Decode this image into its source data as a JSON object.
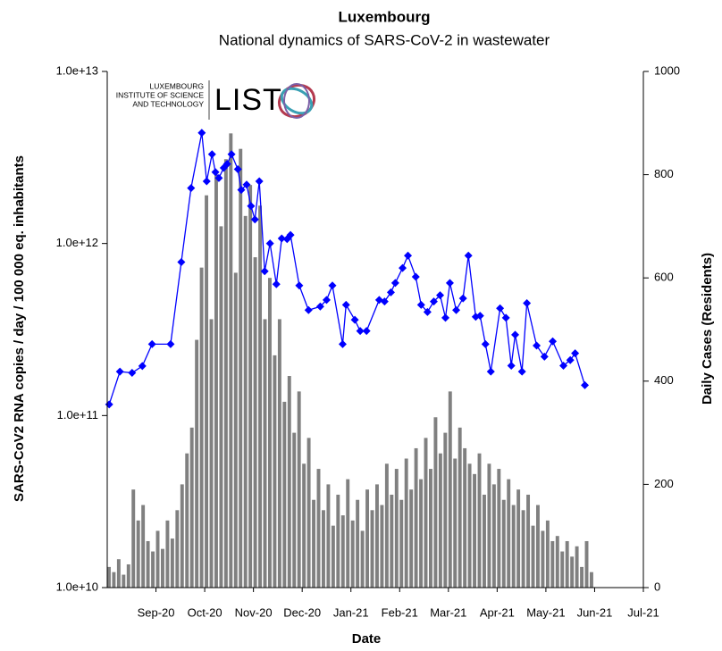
{
  "chart_data": {
    "type": "combo",
    "title": "Luxembourg",
    "subtitle": "National dynamics of SARS-CoV-2 in wastewater",
    "x_label": "Date",
    "y_label": "SARS-CoV2 RNA copies / day  / 100 000 eq. inhabitants",
    "y2_label": "Daily Cases (Residents)",
    "logo": {
      "institute": [
        "LUXEMBOURG",
        "INSTITUTE OF SCIENCE",
        "AND TECHNOLOGY"
      ],
      "brand": "LIST"
    },
    "xlim": [
      0,
      11
    ],
    "xticks": [
      {
        "value": 1,
        "label": "Sep-20"
      },
      {
        "value": 2,
        "label": "Oct-20"
      },
      {
        "value": 3,
        "label": "Nov-20"
      },
      {
        "value": 4,
        "label": "Dec-20"
      },
      {
        "value": 5,
        "label": "Jan-21"
      },
      {
        "value": 6,
        "label": "Feb-21"
      },
      {
        "value": 7,
        "label": "Mar-21"
      },
      {
        "value": 8,
        "label": "Apr-21"
      },
      {
        "value": 9,
        "label": "May-21"
      },
      {
        "value": 10,
        "label": "Jun-21"
      },
      {
        "value": 11,
        "label": "Jul-21"
      }
    ],
    "ylog": true,
    "ylim": [
      10000000000,
      10000000000000
    ],
    "yticks": [
      {
        "value": 10000000000,
        "label": "1.0e+10"
      },
      {
        "value": 100000000000,
        "label": "1.0e+11"
      },
      {
        "value": 1000000000000,
        "label": "1.0e+12"
      },
      {
        "value": 10000000000000,
        "label": "1.0e+13"
      }
    ],
    "y2lim": [
      0,
      1000
    ],
    "y2ticks": [
      0,
      200,
      400,
      600,
      800,
      1000
    ],
    "series": [
      {
        "name": "Daily Cases (Residents)",
        "type": "bar",
        "axis": "y2",
        "color": "#808080",
        "x": [
          0,
          0.1,
          0.2,
          0.3,
          0.4,
          0.5,
          0.6,
          0.7,
          0.8,
          0.9,
          1,
          1.1,
          1.2,
          1.3,
          1.4,
          1.5,
          1.6,
          1.7,
          1.8,
          1.9,
          2,
          2.1,
          2.2,
          2.3,
          2.4,
          2.5,
          2.6,
          2.7,
          2.8,
          2.9,
          3,
          3.1,
          3.2,
          3.3,
          3.4,
          3.5,
          3.6,
          3.7,
          3.8,
          3.9,
          4,
          4.1,
          4.2,
          4.3,
          4.4,
          4.5,
          4.6,
          4.7,
          4.8,
          4.9,
          5,
          5.1,
          5.2,
          5.3,
          5.4,
          5.5,
          5.6,
          5.7,
          5.8,
          5.9,
          6,
          6.1,
          6.2,
          6.3,
          6.4,
          6.5,
          6.6,
          6.7,
          6.8,
          6.9,
          7,
          7.1,
          7.2,
          7.3,
          7.4,
          7.5,
          7.6,
          7.7,
          7.8,
          7.9,
          8,
          8.1,
          8.2,
          8.3,
          8.4,
          8.5,
          8.6,
          8.7,
          8.8,
          8.9,
          9,
          9.1,
          9.2,
          9.3,
          9.4,
          9.5,
          9.6,
          9.7,
          9.8,
          9.9
        ],
        "values": [
          40,
          30,
          55,
          25,
          45,
          190,
          130,
          160,
          90,
          70,
          110,
          75,
          130,
          95,
          150,
          200,
          260,
          310,
          480,
          620,
          760,
          520,
          800,
          700,
          830,
          880,
          610,
          850,
          720,
          780,
          640,
          740,
          520,
          600,
          450,
          520,
          360,
          410,
          300,
          380,
          240,
          290,
          170,
          230,
          150,
          200,
          120,
          180,
          140,
          210,
          130,
          170,
          110,
          190,
          150,
          200,
          160,
          240,
          180,
          230,
          170,
          250,
          190,
          270,
          210,
          290,
          230,
          330,
          260,
          300,
          380,
          250,
          310,
          270,
          240,
          220,
          260,
          180,
          240,
          200,
          230,
          170,
          210,
          160,
          190,
          150,
          180,
          120,
          160,
          110,
          130,
          90,
          100,
          70,
          90,
          60,
          80,
          40,
          90,
          30
        ]
      },
      {
        "name": "SARS-CoV2 RNA copies / day / 100 000 eq. inhabitants",
        "type": "line",
        "axis": "y",
        "color": "#0000ff",
        "x": [
          0.04,
          0.26,
          0.51,
          0.72,
          0.92,
          1.3,
          1.52,
          1.72,
          1.94,
          2.04,
          2.15,
          2.22,
          2.29,
          2.39,
          2.46,
          2.55,
          2.68,
          2.75,
          2.86,
          2.95,
          3.03,
          3.12,
          3.23,
          3.34,
          3.47,
          3.58,
          3.69,
          3.76,
          3.94,
          4.13,
          4.37,
          4.5,
          4.62,
          4.83,
          4.9,
          5.08,
          5.19,
          5.32,
          5.58,
          5.69,
          5.82,
          5.91,
          6.06,
          6.17,
          6.33,
          6.44,
          6.57,
          6.7,
          6.83,
          6.94,
          7.03,
          7.16,
          7.3,
          7.41,
          7.56,
          7.65,
          7.76,
          7.87,
          8.06,
          8.18,
          8.29,
          8.37,
          8.51,
          8.61,
          8.81,
          8.97,
          9.14,
          9.36,
          9.5,
          9.6,
          9.8
        ],
        "values": [
          116000000000,
          180000000000,
          177000000000,
          194000000000,
          260000000000,
          260000000000,
          780000000000,
          2100000000000,
          4400000000000,
          2300000000000,
          3300000000000,
          2600000000000,
          2400000000000,
          2750000000000,
          2900000000000,
          3300000000000,
          2700000000000,
          2050000000000,
          2200000000000,
          1650000000000,
          1380000000000,
          2300000000000,
          690000000000,
          1000000000000,
          580000000000,
          1070000000000,
          1060000000000,
          1120000000000,
          570000000000,
          410000000000,
          430000000000,
          470000000000,
          570000000000,
          260000000000,
          440000000000,
          360000000000,
          310000000000,
          310000000000,
          470000000000,
          460000000000,
          520000000000,
          590000000000,
          720000000000,
          850000000000,
          640000000000,
          440000000000,
          400000000000,
          460000000000,
          500000000000,
          370000000000,
          590000000000,
          410000000000,
          480000000000,
          850000000000,
          375000000000,
          380000000000,
          260000000000,
          180000000000,
          420000000000,
          370000000000,
          195000000000,
          295000000000,
          180000000000,
          450000000000,
          255000000000,
          220000000000,
          270000000000,
          195000000000,
          210000000000,
          230000000000,
          150000000000
        ]
      }
    ]
  }
}
